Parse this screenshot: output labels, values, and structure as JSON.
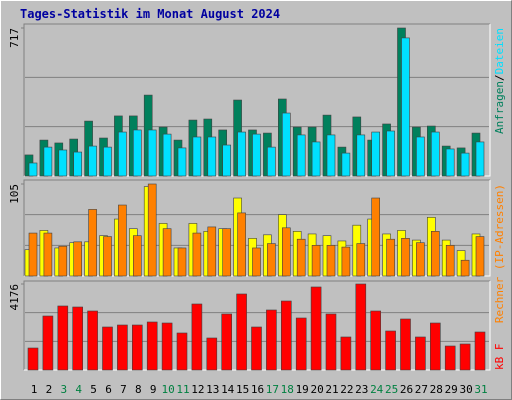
{
  "chart_data": [
    {
      "type": "bar",
      "title": "Tages-Statistik im Monat August 2024",
      "categories": [
        "1",
        "2",
        "3",
        "4",
        "5",
        "6",
        "7",
        "8",
        "9",
        "10",
        "11",
        "12",
        "13",
        "14",
        "15",
        "16",
        "17",
        "18",
        "19",
        "20",
        "21",
        "22",
        "23",
        "24",
        "25",
        "26",
        "27",
        "28",
        "29",
        "30",
        "31"
      ],
      "category_colors": [
        "#000000",
        "#000000",
        "#008040",
        "#008040",
        "#000000",
        "#000000",
        "#000000",
        "#000000",
        "#000000",
        "#008040",
        "#008040",
        "#000000",
        "#000000",
        "#000000",
        "#000000",
        "#000000",
        "#008040",
        "#008040",
        "#000000",
        "#000000",
        "#000000",
        "#000000",
        "#000000",
        "#008040",
        "#008040",
        "#000000",
        "#000000",
        "#000000",
        "#000000",
        "#000000",
        "#008040"
      ],
      "legend_separator": "/",
      "ylim": [
        0,
        717
      ],
      "yticks": [
        717
      ],
      "series": [
        {
          "name": "Anfragen",
          "color": "#00805c",
          "values": [
            102,
            174,
            160,
            179,
            266,
            184,
            291,
            291,
            392,
            237,
            174,
            271,
            276,
            223,
            368,
            223,
            208,
            373,
            237,
            237,
            295,
            140,
            286,
            174,
            252,
            717,
            237,
            242,
            145,
            136,
            208
          ]
        },
        {
          "name": "Dateien",
          "color": "#00e0ff",
          "values": [
            63,
            140,
            126,
            116,
            145,
            140,
            213,
            223,
            223,
            203,
            136,
            189,
            189,
            150,
            213,
            203,
            140,
            305,
            199,
            165,
            199,
            111,
            199,
            213,
            218,
            669,
            189,
            213,
            131,
            111,
            165
          ]
        }
      ]
    },
    {
      "type": "bar",
      "ylim": [
        0,
        105
      ],
      "yticks": [
        105
      ],
      "series": [
        {
          "color": "#ffff00",
          "values": [
            30,
            52,
            32,
            38,
            39,
            46,
            65,
            54,
            102,
            60,
            32,
            60,
            51,
            54,
            89,
            43,
            47,
            70,
            51,
            48,
            46,
            40,
            58,
            65,
            48,
            52,
            41,
            67,
            41,
            29,
            48
          ]
        },
        {
          "name": "Rechner (IP-Adressen)",
          "color": "#ff8000",
          "values": [
            49,
            49,
            34,
            39,
            76,
            45,
            81,
            46,
            105,
            54,
            32,
            49,
            56,
            54,
            72,
            32,
            37,
            55,
            42,
            35,
            35,
            33,
            37,
            89,
            42,
            43,
            38,
            51,
            35,
            18,
            45
          ]
        }
      ]
    },
    {
      "type": "bar",
      "ylim": [
        0,
        4176
      ],
      "yticks": [
        4176
      ],
      "series": [
        {
          "name": "kB F",
          "color": "#ff0000",
          "values": [
            1068,
            2622,
            3108,
            3059,
            2865,
            2088,
            2185,
            2185,
            2331,
            2282,
            1797,
            3205,
            1554,
            2719,
            3691,
            2088,
            2914,
            3350,
            2525,
            4031,
            2719,
            1603,
            4176,
            2865,
            1894,
            2477,
            1603,
            2282,
            1165,
            1263,
            1845
          ]
        }
      ]
    }
  ]
}
